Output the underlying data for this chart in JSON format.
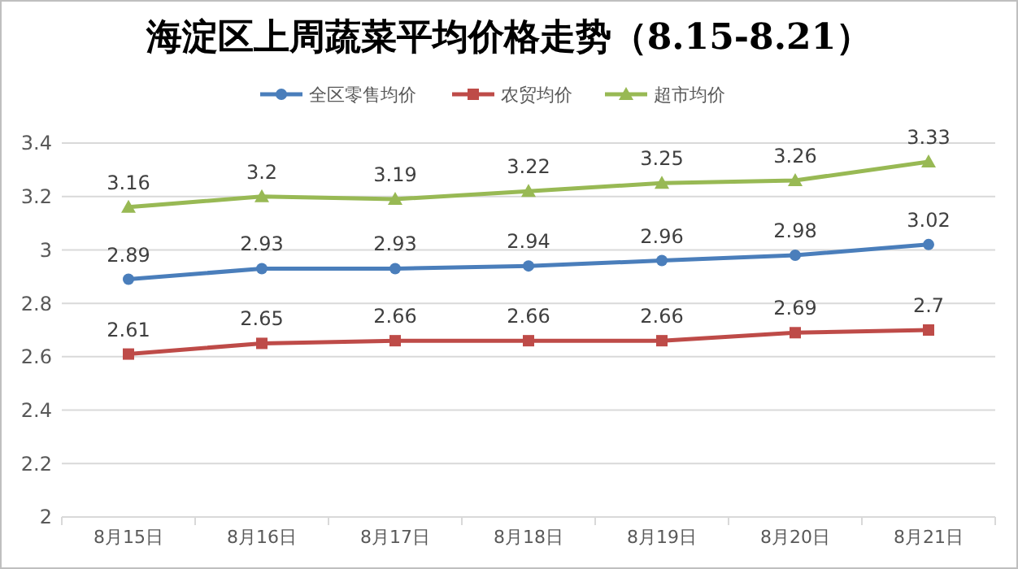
{
  "chart_data": {
    "type": "line",
    "title": "海淀区上周蔬菜平均价格走势（8.15-8.21）",
    "categories": [
      "8月15日",
      "8月16日",
      "8月17日",
      "8月18日",
      "8月19日",
      "8月20日",
      "8月21日"
    ],
    "series": [
      {
        "name": "全区零售均价",
        "color": "#4a7ebb",
        "marker": "circle",
        "values": [
          2.89,
          2.93,
          2.93,
          2.94,
          2.96,
          2.98,
          3.02
        ]
      },
      {
        "name": "农贸均价",
        "color": "#be4b48",
        "marker": "square",
        "values": [
          2.61,
          2.65,
          2.66,
          2.66,
          2.66,
          2.69,
          2.7
        ]
      },
      {
        "name": "超市均价",
        "color": "#98b954",
        "marker": "triangle",
        "values": [
          3.16,
          3.2,
          3.19,
          3.22,
          3.25,
          3.26,
          3.33
        ]
      }
    ],
    "ylim": [
      2,
      3.4
    ],
    "yticks": [
      2,
      2.2,
      2.4,
      2.6,
      2.8,
      3,
      3.2,
      3.4
    ],
    "grid": "y",
    "legend": "top",
    "data_labels": true
  }
}
